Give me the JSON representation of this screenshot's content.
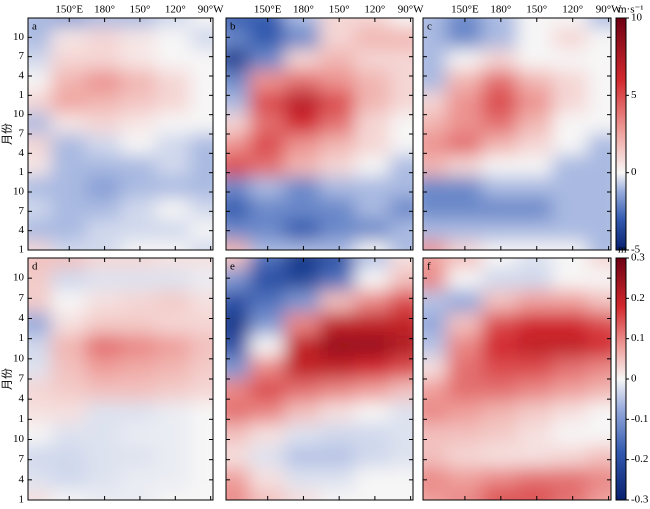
{
  "axes": {
    "xlim": [
      115,
      272
    ],
    "xticks": [
      {
        "value": 150,
        "label": "150°E"
      },
      {
        "value": 180,
        "label": "180°"
      },
      {
        "value": 210,
        "label": "150°"
      },
      {
        "value": 240,
        "label": "120°"
      },
      {
        "value": 270,
        "label": "90°W"
      }
    ],
    "ylim": [
      1,
      37
    ],
    "yticks": [
      1,
      4,
      7,
      10,
      {
        "value": 13,
        "label": "1"
      },
      {
        "value": 16,
        "label": "4"
      },
      {
        "value": 19,
        "label": "7"
      },
      {
        "value": 22,
        "label": "10"
      },
      {
        "value": 25,
        "label": "1"
      },
      {
        "value": 28,
        "label": "4"
      },
      {
        "value": 31,
        "label": "7"
      },
      {
        "value": 34,
        "label": "10"
      }
    ],
    "ylabel": "月份"
  },
  "colorbars": [
    {
      "label": "m·s⁻¹",
      "zlim": [
        -5,
        10
      ],
      "zticks": [
        -5,
        0,
        5,
        10
      ]
    },
    {
      "label": "m",
      "zlim": [
        -0.3,
        0.3
      ],
      "zticks": [
        -0.3,
        -0.2,
        -0.1,
        0,
        0.1,
        0.2,
        0.3
      ]
    }
  ],
  "chart_data": [
    {
      "type": "heatmap",
      "label": "a",
      "zlim": [
        -5,
        10
      ],
      "z": [
        [
          -1,
          -1.5,
          -1,
          -1,
          -0.5,
          0
        ],
        [
          -1,
          0.5,
          1,
          0.5,
          0,
          -0.5
        ],
        [
          -0.5,
          1,
          1,
          0.5,
          0,
          0
        ],
        [
          0,
          2,
          3,
          2,
          1,
          0
        ],
        [
          1,
          2.5,
          2,
          1.5,
          1,
          0
        ],
        [
          -1,
          0.5,
          1,
          0.5,
          0,
          0
        ],
        [
          1,
          -1,
          -0.5,
          0,
          -0.5,
          -1
        ],
        [
          0.5,
          -1,
          -1,
          -1,
          -0.5,
          -1
        ],
        [
          -1,
          -1,
          -1.5,
          -1,
          -1,
          -1
        ],
        [
          -0.5,
          -1,
          -1,
          -0.5,
          0,
          -0.5
        ],
        [
          -1,
          -1,
          -0.5,
          -0.5,
          -0.5,
          0
        ],
        [
          1,
          -0.5,
          -0.5,
          0,
          0,
          -0.5
        ]
      ]
    },
    {
      "type": "heatmap",
      "label": "b",
      "zlim": [
        -5,
        10
      ],
      "z": [
        [
          -3,
          -3,
          -1,
          1,
          1,
          0
        ],
        [
          -2,
          -3,
          -2,
          1,
          2,
          2
        ],
        [
          -4,
          -2,
          1,
          2,
          1,
          1
        ],
        [
          -2,
          3,
          4,
          3,
          2,
          1
        ],
        [
          -1,
          5,
          7,
          5,
          2,
          1
        ],
        [
          1,
          4,
          6,
          4,
          1,
          0
        ],
        [
          3,
          5,
          3,
          2,
          1,
          0
        ],
        [
          5,
          4,
          2,
          1,
          0,
          -1
        ],
        [
          -2,
          -1,
          -2,
          -1,
          -1,
          -1
        ],
        [
          -3,
          -2,
          -2,
          -2,
          -1,
          -2
        ],
        [
          -2,
          -2,
          -3,
          -2,
          -2,
          -1
        ],
        [
          2,
          -1,
          -1,
          -1,
          0,
          -1
        ]
      ]
    },
    {
      "type": "heatmap",
      "label": "c",
      "zlim": [
        -5,
        10
      ],
      "z": [
        [
          -1,
          -2,
          -1,
          0,
          0,
          -1
        ],
        [
          -1,
          -2,
          -1,
          0,
          1,
          0
        ],
        [
          -1,
          0,
          1,
          0,
          0,
          0
        ],
        [
          -1,
          2,
          4,
          2,
          1,
          0
        ],
        [
          1,
          3,
          5,
          3,
          1,
          0
        ],
        [
          2,
          3,
          4,
          2,
          0,
          0
        ],
        [
          3,
          4,
          2,
          1,
          0,
          -1
        ],
        [
          2,
          1,
          0,
          0,
          -1,
          -1
        ],
        [
          -2,
          -2,
          -1,
          -1,
          -1,
          -1
        ],
        [
          -2,
          -2,
          -2,
          -2,
          -1,
          -1
        ],
        [
          -1,
          -1,
          -1,
          -1,
          -1,
          -1
        ],
        [
          3,
          1,
          0,
          0,
          0,
          -1
        ]
      ]
    },
    {
      "type": "heatmap",
      "label": "d",
      "zlim": [
        -0.3,
        0.3
      ],
      "z": [
        [
          0.05,
          0.05,
          0.03,
          0.03,
          0.02,
          0.02
        ],
        [
          0.04,
          -0.03,
          -0.02,
          -0.02,
          -0.02,
          -0.01
        ],
        [
          0.04,
          0,
          0.02,
          0.03,
          0.04,
          0.02
        ],
        [
          -0.08,
          0.02,
          0.04,
          0.04,
          0.03,
          0.03
        ],
        [
          -0.03,
          0.06,
          0.12,
          0.1,
          0.08,
          0.05
        ],
        [
          -0.02,
          0.05,
          0.08,
          0.07,
          0.06,
          0.04
        ],
        [
          0.03,
          0.04,
          0.05,
          0.05,
          0.04,
          0.03
        ],
        [
          0.02,
          0.02,
          -0.02,
          -0.02,
          -0.01,
          0
        ],
        [
          0,
          -0.02,
          -0.02,
          -0.01,
          -0.01,
          0
        ],
        [
          -0.03,
          -0.03,
          -0.02,
          -0.02,
          -0.01,
          0
        ],
        [
          -0.02,
          -0.03,
          -0.02,
          -0.01,
          -0.01,
          0
        ],
        [
          0.02,
          0,
          -0.01,
          -0.01,
          0,
          0
        ]
      ]
    },
    {
      "type": "heatmap",
      "label": "e",
      "zlim": [
        -0.3,
        0.3
      ],
      "z": [
        [
          0.05,
          -0.15,
          -0.25,
          -0.2,
          -0.05,
          0.02
        ],
        [
          -0.1,
          -0.2,
          -0.22,
          -0.15,
          0,
          0.05
        ],
        [
          -0.2,
          -0.15,
          -0.1,
          0.05,
          0.1,
          0.15
        ],
        [
          -0.25,
          -0.1,
          0.1,
          0.2,
          0.2,
          0.2
        ],
        [
          -0.2,
          0,
          0.2,
          0.25,
          0.25,
          0.22
        ],
        [
          -0.1,
          0.1,
          0.2,
          0.2,
          0.18,
          0.15
        ],
        [
          0.1,
          0.15,
          0.12,
          0.1,
          0.08,
          0.05
        ],
        [
          0.12,
          0.1,
          0.05,
          0.02,
          0,
          -0.02
        ],
        [
          0.05,
          0.02,
          -0.02,
          -0.03,
          -0.03,
          -0.02
        ],
        [
          0.02,
          -0.02,
          -0.05,
          -0.05,
          -0.03,
          -0.02
        ],
        [
          0.08,
          0.02,
          -0.02,
          -0.02,
          0,
          0
        ],
        [
          0.1,
          0.05,
          0.02,
          0,
          0,
          0
        ]
      ]
    },
    {
      "type": "heatmap",
      "label": "f",
      "zlim": [
        -0.3,
        0.3
      ],
      "z": [
        [
          0.08,
          0.05,
          0,
          -0.02,
          0,
          0.03
        ],
        [
          0.1,
          0,
          -0.03,
          -0.03,
          0,
          0
        ],
        [
          -0.05,
          -0.08,
          0.05,
          0.08,
          0.08,
          0.05
        ],
        [
          -0.08,
          0.05,
          0.15,
          0.18,
          0.18,
          0.15
        ],
        [
          -0.05,
          0.1,
          0.18,
          0.2,
          0.2,
          0.18
        ],
        [
          0.02,
          0.12,
          0.15,
          0.15,
          0.12,
          0.1
        ],
        [
          0.08,
          0.12,
          0.12,
          0.1,
          0.08,
          0.06
        ],
        [
          0.1,
          0.08,
          0.06,
          0.04,
          0.02,
          0
        ],
        [
          0.05,
          0.05,
          0.04,
          0.02,
          0,
          0
        ],
        [
          0.05,
          0.03,
          0.02,
          0.02,
          0.03,
          0.05
        ],
        [
          0.1,
          0.08,
          0.1,
          0.12,
          0.12,
          0.1
        ],
        [
          0.08,
          0.1,
          0.15,
          0.15,
          0.12,
          0.08
        ]
      ]
    }
  ]
}
